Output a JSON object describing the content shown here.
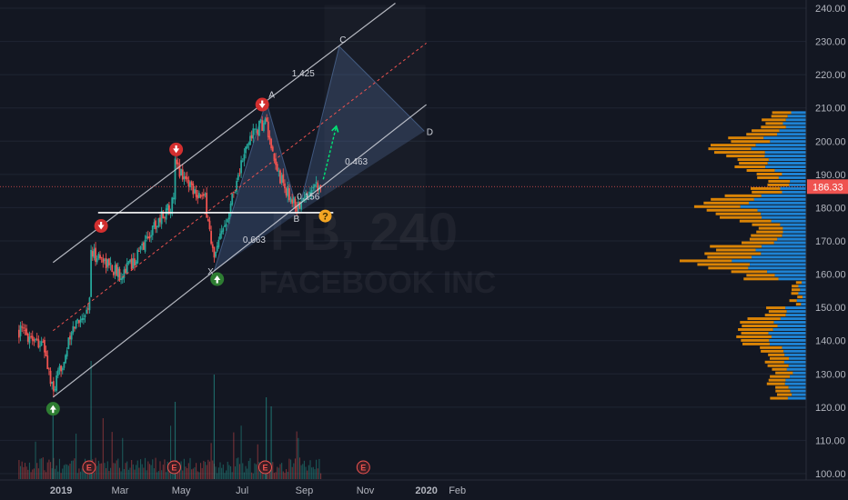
{
  "watermark": {
    "symbol": "FB, 240",
    "company": "FACEBOOK INC"
  },
  "price_label": "186.33",
  "colors": {
    "background": "#131722",
    "up": "#26a69a",
    "down": "#ef5350",
    "volume_profile_up": "#2196f3",
    "volume_profile_down": "#ff9800",
    "channel": "#d1d4dc",
    "midline": "#ef5350",
    "signal_down": "#d32f2f",
    "signal_up": "#2e7d32",
    "question_marker": "#f5a623",
    "projection_arrow": "#00e676",
    "price_tag": "#ef5350",
    "earnings_marker": "#ef5350"
  },
  "chart_data": {
    "type": "candlestick",
    "title": "",
    "y_axis": {
      "ticks": [
        "240.00",
        "230.00",
        "220.00",
        "210.00",
        "200.00",
        "190.00",
        "180.00",
        "170.00",
        "160.00",
        "150.00",
        "140.00",
        "130.00",
        "120.00",
        "110.00",
        "100.00"
      ],
      "range": [
        99,
        241
      ]
    },
    "x_axis": {
      "ticks": [
        "2019",
        "Mar",
        "May",
        "Jul",
        "Sep",
        "Nov",
        "2020",
        "Feb"
      ]
    },
    "last_price": 186.33,
    "price_anchors": [
      [
        "2018-11-20",
        143.0
      ],
      [
        "2018-12-05",
        141.0
      ],
      [
        "2018-12-15",
        138.0
      ],
      [
        "2018-12-24",
        124.0
      ],
      [
        "2019-01-03",
        134.0
      ],
      [
        "2019-01-15",
        145.0
      ],
      [
        "2019-01-29",
        150.0
      ],
      [
        "2019-01-31",
        166.0
      ],
      [
        "2019-02-10",
        165.0
      ],
      [
        "2019-02-28",
        160.0
      ],
      [
        "2019-03-15",
        164.0
      ],
      [
        "2019-04-05",
        175.0
      ],
      [
        "2019-04-24",
        182.0
      ],
      [
        "2019-04-25",
        193.0
      ],
      [
        "2019-05-10",
        187.0
      ],
      [
        "2019-05-25",
        182.0
      ],
      [
        "2019-06-03",
        164.0
      ],
      [
        "2019-06-15",
        177.0
      ],
      [
        "2019-06-30",
        193.0
      ],
      [
        "2019-07-10",
        202.0
      ],
      [
        "2019-07-25",
        206.0
      ],
      [
        "2019-07-30",
        196.0
      ],
      [
        "2019-08-12",
        186.0
      ],
      [
        "2019-08-25",
        180.0
      ],
      [
        "2019-09-03",
        183.0
      ],
      [
        "2019-09-10",
        188.0
      ],
      [
        "2019-09-18",
        186.33
      ]
    ],
    "horizontal_support": 178.5,
    "channel": {
      "upper": [
        [
          "2018-12-24",
          163.5
        ],
        [
          "2019-12-01",
          241.5
        ]
      ],
      "lower": [
        [
          "2018-12-24",
          123.0
        ],
        [
          "2020-01-01",
          211.0
        ]
      ],
      "middle": [
        [
          "2018-12-24",
          143.0
        ],
        [
          "2020-01-01",
          229.5
        ]
      ]
    },
    "harmonic_pattern": {
      "points": [
        {
          "label": "X",
          "date": "2019-06-03",
          "price": 161.0
        },
        {
          "label": "A",
          "date": "2019-07-25",
          "price": 212.0
        },
        {
          "label": "B",
          "date": "2019-08-26",
          "price": 178.5
        },
        {
          "label": "C",
          "date": "2019-10-06",
          "price": 228.5
        },
        {
          "label": "D",
          "date": "2019-12-30",
          "price": 203.0
        }
      ],
      "ratios": [
        {
          "value": "1.425",
          "date": "2019-08-31",
          "price": 219.5
        },
        {
          "value": "0.663",
          "date": "2019-07-13",
          "price": 169.5
        },
        {
          "value": "0.156",
          "date": "2019-09-05",
          "price": 182.5
        },
        {
          "value": "0.463",
          "date": "2019-10-23",
          "price": 193.0
        }
      ]
    },
    "signals": [
      {
        "type": "down",
        "date": "2019-02-10",
        "price": 174.5
      },
      {
        "type": "down",
        "date": "2019-04-26",
        "price": 197.5
      },
      {
        "type": "down",
        "date": "2019-07-21",
        "price": 211.0
      },
      {
        "type": "up",
        "date": "2018-12-24",
        "price": 119.5
      },
      {
        "type": "up",
        "date": "2019-06-06",
        "price": 158.5
      },
      {
        "type": "question",
        "date": "2019-09-22",
        "price": 177.5
      }
    ],
    "projection_arrow": {
      "from": [
        "2019-09-20",
        188.5
      ],
      "to": [
        "2019-10-03",
        204.5
      ]
    },
    "earnings_dates": [
      "2019-01-29",
      "2019-04-24",
      "2019-07-24",
      "2019-10-30"
    ],
    "volume_profile_rows": 80
  }
}
